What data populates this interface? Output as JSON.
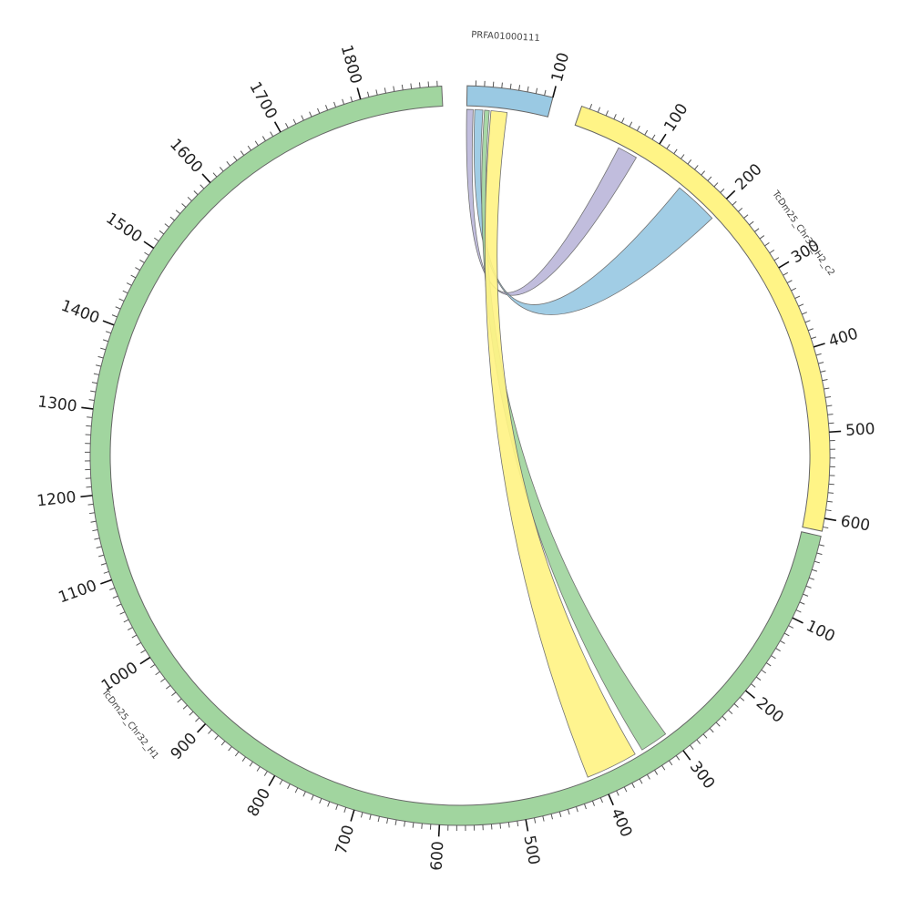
{
  "colors": {
    "green": "#a1d59f",
    "yellow": "#fff486",
    "blue": "#9ac9e3",
    "purple": "#bcb8db",
    "blue_grey": "#9bb0bd",
    "yellow_green": "#dde47f",
    "outline": "#666666"
  },
  "segments": [
    {
      "id": "prfa",
      "name": "PRFA01000111",
      "length": 100,
      "color": "#9ac9e3",
      "labels": [
        {
          "value": 100,
          "text": "100"
        }
      ]
    },
    {
      "id": "h2",
      "name": "TcDm25_Chr32_H2_c2",
      "length": 615,
      "color": "#fff486",
      "labels": [
        {
          "value": 100,
          "text": "100"
        },
        {
          "value": 200,
          "text": "200"
        },
        {
          "value": 300,
          "text": "300"
        },
        {
          "value": 400,
          "text": "400"
        },
        {
          "value": 500,
          "text": "500"
        },
        {
          "value": 600,
          "text": "600"
        }
      ]
    },
    {
      "id": "h1",
      "name": "TcDm25_Chr32_H1",
      "length": 1895,
      "color": "#a1d59f",
      "labels": [
        {
          "value": 100,
          "text": "100"
        },
        {
          "value": 200,
          "text": "200"
        },
        {
          "value": 300,
          "text": "300"
        },
        {
          "value": 400,
          "text": "400"
        },
        {
          "value": 500,
          "text": "500"
        },
        {
          "value": 600,
          "text": "600"
        },
        {
          "value": 700,
          "text": "700"
        },
        {
          "value": 800,
          "text": "800"
        },
        {
          "value": 900,
          "text": "900"
        },
        {
          "value": 1000,
          "text": "1000"
        },
        {
          "value": 1100,
          "text": "1100"
        },
        {
          "value": 1200,
          "text": "1200"
        },
        {
          "value": 1300,
          "text": "1300"
        },
        {
          "value": 1400,
          "text": "1400"
        },
        {
          "value": 1500,
          "text": "1500"
        },
        {
          "value": 1600,
          "text": "1600"
        },
        {
          "value": 1700,
          "text": "1700"
        },
        {
          "value": 1800,
          "text": "1800"
        }
      ]
    }
  ],
  "links": [
    {
      "from": {
        "seg": "prfa",
        "start": 0,
        "end": 8
      },
      "to": {
        "seg": "h2",
        "start": 60,
        "end": 85
      },
      "color": "#bcb8db"
    },
    {
      "from": {
        "seg": "prfa",
        "start": 10,
        "end": 20
      },
      "to": {
        "seg": "h2",
        "start": 150,
        "end": 205
      },
      "color": "#9ac9e3"
    },
    {
      "from": {
        "seg": "prfa",
        "start": 22,
        "end": 28
      },
      "to": {
        "seg": "h1",
        "start": 305,
        "end": 340
      },
      "color": "#a1d59f"
    },
    {
      "from": {
        "seg": "prfa",
        "start": 30,
        "end": 50
      },
      "to": {
        "seg": "h1",
        "start": 350,
        "end": 415
      },
      "color": "#fff486"
    }
  ]
}
